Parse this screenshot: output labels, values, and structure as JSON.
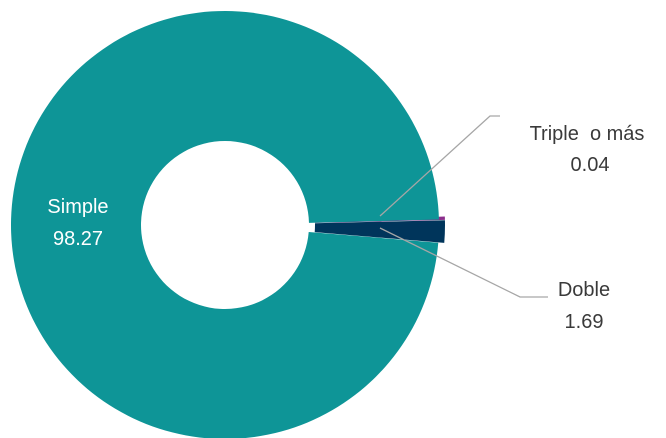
{
  "chart_data": {
    "type": "pie",
    "variant": "donut",
    "title": "",
    "slices": [
      {
        "label": "Simple",
        "value": 98.27,
        "value_label": "98.27",
        "color": "#0E9597",
        "label_placement": "inside"
      },
      {
        "label": "Doble",
        "value": 1.69,
        "value_label": "1.69",
        "color": "#00355B",
        "label_placement": "outside-callout"
      },
      {
        "label": "Triple  o más",
        "value": 0.04,
        "value_label": "0.04",
        "color": "#8B2E8C",
        "label_placement": "outside-callout"
      }
    ],
    "legend": "none"
  }
}
